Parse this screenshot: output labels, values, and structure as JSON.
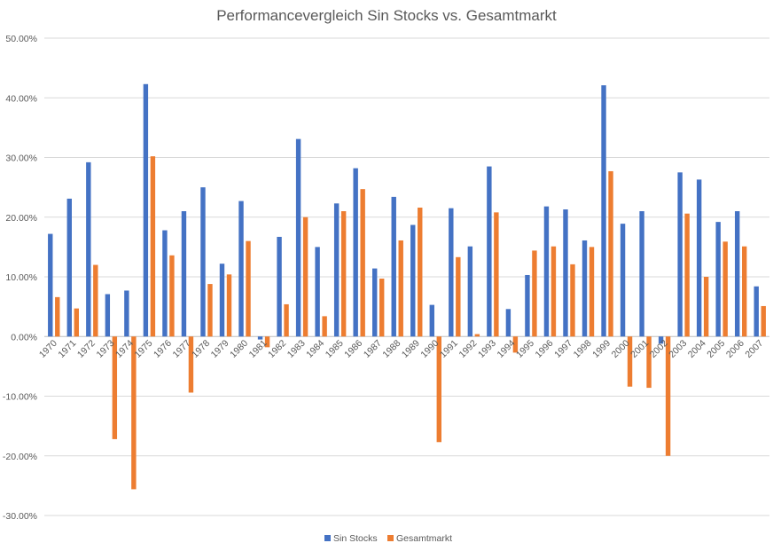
{
  "chart_data": {
    "type": "bar",
    "title": "Performancevergleich Sin Stocks vs. Gesamtmarkt",
    "xlabel": "",
    "ylabel": "",
    "ylim": [
      -0.3,
      0.5
    ],
    "yticks": [
      "50.00%",
      "40.00%",
      "30.00%",
      "20.00%",
      "10.00%",
      "0.00%",
      "-10.00%",
      "-20.00%",
      "-30.00%"
    ],
    "ytick_values": [
      0.5,
      0.4,
      0.3,
      0.2,
      0.1,
      0.0,
      -0.1,
      -0.2,
      -0.3
    ],
    "grid": true,
    "legend_position": "bottom",
    "categories": [
      "1970",
      "1971",
      "1972",
      "1973",
      "1974",
      "1975",
      "1976",
      "1977",
      "1978",
      "1979",
      "1980",
      "1981",
      "1982",
      "1983",
      "1984",
      "1985",
      "1986",
      "1987",
      "1988",
      "1989",
      "1990",
      "1991",
      "1992",
      "1993",
      "1994",
      "1995",
      "1996",
      "1997",
      "1998",
      "1999",
      "2000",
      "2001",
      "2002",
      "2003",
      "2004",
      "2005",
      "2006",
      "2007"
    ],
    "series": [
      {
        "name": "Sin Stocks",
        "color": "#4472C4",
        "values": [
          0.172,
          0.231,
          0.292,
          0.071,
          0.077,
          0.423,
          0.178,
          0.21,
          0.25,
          0.122,
          0.227,
          -0.005,
          0.167,
          0.331,
          0.15,
          0.223,
          0.282,
          0.114,
          0.234,
          0.187,
          0.053,
          0.215,
          0.151,
          0.285,
          0.046,
          0.103,
          0.218,
          0.213,
          0.161,
          0.421,
          0.189,
          0.21,
          -0.012,
          0.275,
          0.263,
          0.192,
          0.21,
          0.084
        ]
      },
      {
        "name": "Gesamtmarkt",
        "color": "#ED7D31",
        "values": [
          0.066,
          0.047,
          0.12,
          -0.172,
          -0.256,
          0.302,
          0.136,
          -0.094,
          0.088,
          0.104,
          0.16,
          -0.018,
          0.054,
          0.2,
          0.034,
          0.21,
          0.247,
          0.097,
          0.161,
          0.216,
          -0.177,
          0.133,
          0.004,
          0.208,
          -0.027,
          0.144,
          0.151,
          0.121,
          0.15,
          0.277,
          -0.084,
          -0.086,
          -0.2,
          0.206,
          0.1,
          0.159,
          0.151,
          0.051
        ]
      }
    ]
  }
}
